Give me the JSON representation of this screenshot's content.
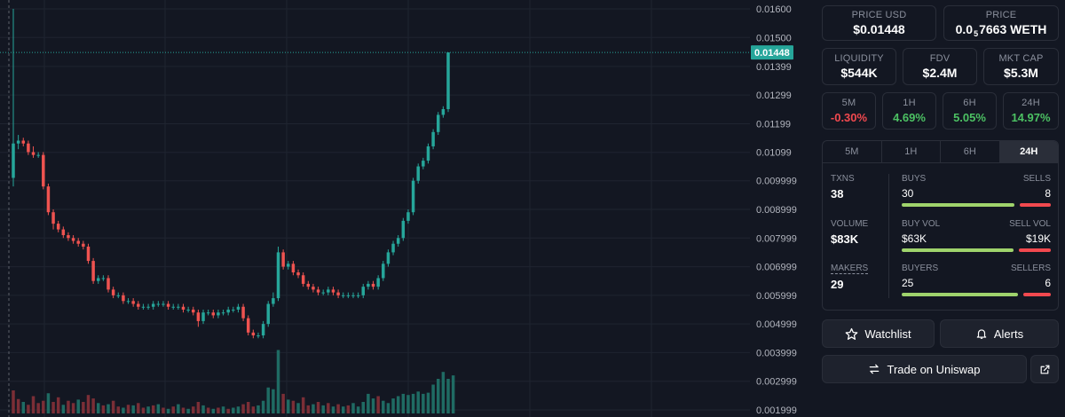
{
  "chart": {
    "price_label": "0.01448",
    "accent": "#26a69a",
    "up_color": "#26a69a",
    "down_color": "#ef5350",
    "y_ticks": [
      "0.01600",
      "0.01500",
      "0.01399",
      "0.01299",
      "0.01199",
      "0.01099",
      "0.009999",
      "0.008999",
      "0.007999",
      "0.006999",
      "0.005999",
      "0.004999",
      "0.003999",
      "0.002999",
      "0.001999"
    ]
  },
  "chart_data": {
    "type": "candlestick",
    "ylim": [
      0.001999,
      0.016
    ],
    "current_price": 0.01448,
    "candles": [
      [
        0.0101,
        0.016,
        0.0098,
        0.0113
      ],
      [
        0.0113,
        0.0116,
        0.0111,
        0.0114
      ],
      [
        0.0114,
        0.0115,
        0.0112,
        0.0113
      ],
      [
        0.0113,
        0.0114,
        0.0109,
        0.011
      ],
      [
        0.011,
        0.0112,
        0.0108,
        0.0109
      ],
      [
        0.0109,
        0.011,
        0.0108,
        0.0109
      ],
      [
        0.0109,
        0.011,
        0.0097,
        0.0098
      ],
      [
        0.0098,
        0.0099,
        0.0088,
        0.0089
      ],
      [
        0.0089,
        0.009,
        0.0083,
        0.0085
      ],
      [
        0.0085,
        0.0086,
        0.0082,
        0.0083
      ],
      [
        0.0083,
        0.0084,
        0.008,
        0.0081
      ],
      [
        0.0081,
        0.0082,
        0.0079,
        0.008
      ],
      [
        0.008,
        0.0081,
        0.0078,
        0.0079
      ],
      [
        0.0079,
        0.008,
        0.0077,
        0.0078
      ],
      [
        0.0078,
        0.0079,
        0.0076,
        0.0077
      ],
      [
        0.0077,
        0.0078,
        0.0071,
        0.0072
      ],
      [
        0.0072,
        0.0073,
        0.0064,
        0.0065
      ],
      [
        0.0065,
        0.0067,
        0.0064,
        0.0066
      ],
      [
        0.0066,
        0.0067,
        0.0065,
        0.0066
      ],
      [
        0.0066,
        0.0067,
        0.0061,
        0.0062
      ],
      [
        0.0062,
        0.0063,
        0.0059,
        0.006
      ],
      [
        0.006,
        0.0061,
        0.0059,
        0.006
      ],
      [
        0.006,
        0.0061,
        0.0057,
        0.0058
      ],
      [
        0.0058,
        0.0059,
        0.0057,
        0.0058
      ],
      [
        0.0058,
        0.0059,
        0.0056,
        0.0057
      ],
      [
        0.0057,
        0.0058,
        0.0055,
        0.0056
      ],
      [
        0.0056,
        0.0057,
        0.0055,
        0.0056
      ],
      [
        0.0056,
        0.0057,
        0.0055,
        0.0056
      ],
      [
        0.0056,
        0.0058,
        0.0055,
        0.0057
      ],
      [
        0.0057,
        0.0058,
        0.0056,
        0.0057
      ],
      [
        0.0057,
        0.0058,
        0.0056,
        0.0057
      ],
      [
        0.0057,
        0.0058,
        0.0055,
        0.0056
      ],
      [
        0.0056,
        0.0057,
        0.0055,
        0.0056
      ],
      [
        0.0056,
        0.0057,
        0.0055,
        0.0056
      ],
      [
        0.0056,
        0.0057,
        0.0054,
        0.0055
      ],
      [
        0.0055,
        0.0056,
        0.0054,
        0.0055
      ],
      [
        0.0055,
        0.0056,
        0.0053,
        0.0054
      ],
      [
        0.0054,
        0.0055,
        0.0049,
        0.0051
      ],
      [
        0.0051,
        0.0055,
        0.005,
        0.0054
      ],
      [
        0.0054,
        0.0055,
        0.0053,
        0.0054
      ],
      [
        0.0054,
        0.0055,
        0.0052,
        0.0053
      ],
      [
        0.0053,
        0.0055,
        0.0052,
        0.0054
      ],
      [
        0.0054,
        0.0055,
        0.0053,
        0.0054
      ],
      [
        0.0054,
        0.0056,
        0.0053,
        0.0055
      ],
      [
        0.0055,
        0.0056,
        0.0054,
        0.0055
      ],
      [
        0.0055,
        0.0057,
        0.0054,
        0.0056
      ],
      [
        0.0056,
        0.0057,
        0.0051,
        0.0052
      ],
      [
        0.0052,
        0.0053,
        0.0046,
        0.0047
      ],
      [
        0.0047,
        0.0048,
        0.0045,
        0.0046
      ],
      [
        0.0046,
        0.0047,
        0.0045,
        0.0046
      ],
      [
        0.0046,
        0.0051,
        0.0045,
        0.005
      ],
      [
        0.005,
        0.0058,
        0.0049,
        0.0057
      ],
      [
        0.0057,
        0.0061,
        0.0056,
        0.0059
      ],
      [
        0.0059,
        0.0077,
        0.0058,
        0.0075
      ],
      [
        0.0075,
        0.0076,
        0.0069,
        0.007
      ],
      [
        0.007,
        0.0072,
        0.0069,
        0.0071
      ],
      [
        0.0071,
        0.0072,
        0.0067,
        0.0068
      ],
      [
        0.0068,
        0.0069,
        0.0066,
        0.0067
      ],
      [
        0.0067,
        0.0068,
        0.0063,
        0.0064
      ],
      [
        0.0064,
        0.0065,
        0.0062,
        0.0063
      ],
      [
        0.0063,
        0.0064,
        0.0061,
        0.0062
      ],
      [
        0.0062,
        0.0063,
        0.006,
        0.0061
      ],
      [
        0.0061,
        0.0062,
        0.006,
        0.0061
      ],
      [
        0.0061,
        0.0063,
        0.006,
        0.0062
      ],
      [
        0.0062,
        0.0063,
        0.006,
        0.0061
      ],
      [
        0.0061,
        0.0062,
        0.0059,
        0.006
      ],
      [
        0.006,
        0.0061,
        0.0059,
        0.006
      ],
      [
        0.006,
        0.0061,
        0.0059,
        0.006
      ],
      [
        0.006,
        0.0061,
        0.0059,
        0.006
      ],
      [
        0.006,
        0.0061,
        0.0059,
        0.006
      ],
      [
        0.006,
        0.0064,
        0.0059,
        0.0063
      ],
      [
        0.0063,
        0.0065,
        0.0062,
        0.0064
      ],
      [
        0.0064,
        0.0065,
        0.0062,
        0.0063
      ],
      [
        0.0063,
        0.0067,
        0.0062,
        0.0066
      ],
      [
        0.0066,
        0.0072,
        0.0065,
        0.0071
      ],
      [
        0.0071,
        0.0076,
        0.007,
        0.0075
      ],
      [
        0.0075,
        0.0079,
        0.0074,
        0.0078
      ],
      [
        0.0078,
        0.0081,
        0.0077,
        0.008
      ],
      [
        0.008,
        0.0087,
        0.0079,
        0.0086
      ],
      [
        0.0086,
        0.009,
        0.0085,
        0.0089
      ],
      [
        0.0089,
        0.0101,
        0.0088,
        0.01
      ],
      [
        0.01,
        0.0106,
        0.0099,
        0.0105
      ],
      [
        0.0105,
        0.0108,
        0.0104,
        0.0107
      ],
      [
        0.0107,
        0.0113,
        0.0106,
        0.0112
      ],
      [
        0.0112,
        0.0118,
        0.0111,
        0.0117
      ],
      [
        0.0117,
        0.0124,
        0.0116,
        0.0123
      ],
      [
        0.0123,
        0.0126,
        0.0122,
        0.0125
      ],
      [
        0.0125,
        0.01448,
        0.0124,
        0.01448
      ]
    ],
    "volume": [
      [
        40,
        "d"
      ],
      [
        25,
        "d"
      ],
      [
        20,
        "u"
      ],
      [
        15,
        "d"
      ],
      [
        30,
        "d"
      ],
      [
        18,
        "d"
      ],
      [
        22,
        "d"
      ],
      [
        35,
        "u"
      ],
      [
        20,
        "d"
      ],
      [
        28,
        "d"
      ],
      [
        15,
        "u"
      ],
      [
        22,
        "d"
      ],
      [
        18,
        "d"
      ],
      [
        24,
        "u"
      ],
      [
        20,
        "d"
      ],
      [
        32,
        "d"
      ],
      [
        26,
        "d"
      ],
      [
        18,
        "u"
      ],
      [
        14,
        "d"
      ],
      [
        16,
        "u"
      ],
      [
        22,
        "d"
      ],
      [
        12,
        "d"
      ],
      [
        10,
        "u"
      ],
      [
        15,
        "d"
      ],
      [
        14,
        "u"
      ],
      [
        18,
        "d"
      ],
      [
        10,
        "d"
      ],
      [
        12,
        "u"
      ],
      [
        14,
        "d"
      ],
      [
        16,
        "u"
      ],
      [
        10,
        "d"
      ],
      [
        8,
        "u"
      ],
      [
        12,
        "d"
      ],
      [
        16,
        "u"
      ],
      [
        10,
        "d"
      ],
      [
        8,
        "u"
      ],
      [
        12,
        "d"
      ],
      [
        20,
        "d"
      ],
      [
        14,
        "u"
      ],
      [
        10,
        "d"
      ],
      [
        8,
        "u"
      ],
      [
        10,
        "d"
      ],
      [
        12,
        "u"
      ],
      [
        8,
        "d"
      ],
      [
        10,
        "u"
      ],
      [
        12,
        "u"
      ],
      [
        16,
        "d"
      ],
      [
        20,
        "d"
      ],
      [
        12,
        "d"
      ],
      [
        14,
        "u"
      ],
      [
        22,
        "u"
      ],
      [
        45,
        "u"
      ],
      [
        42,
        "u"
      ],
      [
        110,
        "u"
      ],
      [
        34,
        "d"
      ],
      [
        24,
        "u"
      ],
      [
        22,
        "d"
      ],
      [
        18,
        "u"
      ],
      [
        28,
        "d"
      ],
      [
        14,
        "d"
      ],
      [
        16,
        "u"
      ],
      [
        20,
        "d"
      ],
      [
        14,
        "u"
      ],
      [
        18,
        "d"
      ],
      [
        12,
        "u"
      ],
      [
        16,
        "d"
      ],
      [
        12,
        "u"
      ],
      [
        14,
        "d"
      ],
      [
        18,
        "u"
      ],
      [
        12,
        "u"
      ],
      [
        20,
        "u"
      ],
      [
        34,
        "u"
      ],
      [
        26,
        "u"
      ],
      [
        30,
        "d"
      ],
      [
        22,
        "u"
      ],
      [
        18,
        "u"
      ],
      [
        26,
        "u"
      ],
      [
        30,
        "u"
      ],
      [
        34,
        "u"
      ],
      [
        32,
        "u"
      ],
      [
        34,
        "u"
      ],
      [
        38,
        "u"
      ],
      [
        34,
        "u"
      ],
      [
        36,
        "u"
      ],
      [
        50,
        "u"
      ],
      [
        60,
        "u"
      ],
      [
        72,
        "u"
      ],
      [
        60,
        "u"
      ],
      [
        66,
        "u"
      ]
    ]
  },
  "stats_cards": {
    "price_usd": {
      "label": "PRICE USD",
      "value": "$0.01448"
    },
    "price_native": {
      "label": "PRICE",
      "prefix": "0.0",
      "sub": "5",
      "suffix": "7663 WETH"
    },
    "liquidity": {
      "label": "LIQUIDITY",
      "value": "$544K"
    },
    "fdv": {
      "label": "FDV",
      "value": "$2.4M"
    },
    "mkt_cap": {
      "label": "MKT CAP",
      "value": "$5.3M"
    }
  },
  "changes": [
    {
      "label": "5M",
      "value": "-0.30%",
      "dir": "neg"
    },
    {
      "label": "1H",
      "value": "4.69%",
      "dir": "pos"
    },
    {
      "label": "6H",
      "value": "5.05%",
      "dir": "pos"
    },
    {
      "label": "24H",
      "value": "14.97%",
      "dir": "pos"
    }
  ],
  "tabs": [
    "5M",
    "1H",
    "6H",
    "24H"
  ],
  "active_tab": "24H",
  "txn_stats": {
    "txns": {
      "label": "TXNS",
      "value": "38",
      "left_label": "BUYS",
      "right_label": "SELLS",
      "left": "30",
      "right": "8",
      "ratio": 0.79
    },
    "volume": {
      "label": "VOLUME",
      "value": "$83K",
      "left_label": "BUY VOL",
      "right_label": "SELL VOL",
      "left": "$63K",
      "right": "$19K",
      "ratio": 0.77
    },
    "makers": {
      "label": "MAKERS",
      "value": "29",
      "left_label": "BUYERS",
      "right_label": "SELLERS",
      "left": "25",
      "right": "6",
      "ratio": 0.81
    }
  },
  "actions": {
    "watchlist": "Watchlist",
    "alerts": "Alerts",
    "trade": "Trade on Uniswap"
  },
  "icons": {
    "watchlist": "star-icon",
    "alerts": "bell-icon",
    "trade": "swap-arrows-icon",
    "external": "external-link-icon"
  }
}
